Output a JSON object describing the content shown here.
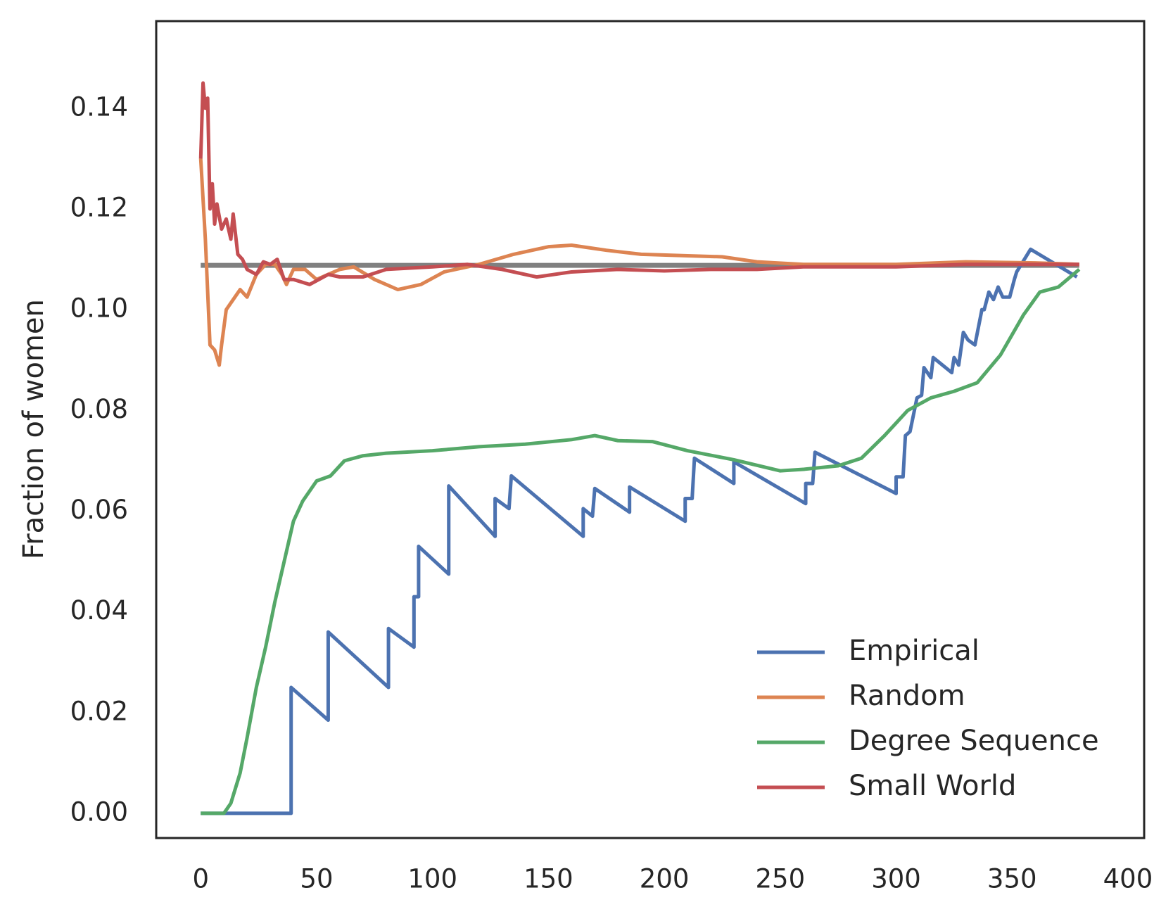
{
  "chart_data": {
    "type": "line",
    "ylabel": "Fraction of women",
    "xlim": [
      -19.2,
      407
    ],
    "ylim": [
      -0.0049,
      0.1573
    ],
    "xticks": [
      0,
      50,
      100,
      150,
      200,
      250,
      300,
      350,
      400
    ],
    "yticks": [
      {
        "value": 0,
        "label": "0.00"
      },
      0.02,
      0.04,
      0.06,
      0.08,
      {
        "value": 0.1,
        "label": "0.10"
      },
      0.12,
      0.14
    ],
    "grid": false,
    "legend": "lower right",
    "hline": {
      "value": 0.1088,
      "color": "#808080"
    },
    "series": [
      {
        "name": "Empirical",
        "color": "#4c72b0",
        "x": [
          0,
          39,
          39,
          55,
          55,
          81,
          81,
          92,
          92,
          94,
          94,
          107,
          107,
          127,
          127,
          133,
          134,
          165,
          165,
          169,
          170,
          185,
          185,
          209,
          209,
          212,
          213,
          230,
          230,
          261,
          261,
          264,
          265,
          300,
          300,
          303,
          304,
          306,
          309,
          311,
          312,
          315,
          316,
          324,
          325,
          327,
          329,
          331,
          334,
          337,
          338,
          340,
          342,
          344,
          346,
          349,
          351,
          352,
          358,
          378
        ],
        "values": [
          0,
          0,
          0.025,
          0.0185,
          0.036,
          0.025,
          0.0367,
          0.033,
          0.043,
          0.043,
          0.053,
          0.0475,
          0.065,
          0.055,
          0.0625,
          0.0605,
          0.067,
          0.055,
          0.0605,
          0.059,
          0.0645,
          0.0598,
          0.0648,
          0.058,
          0.0625,
          0.0625,
          0.0705,
          0.0655,
          0.0698,
          0.0615,
          0.0655,
          0.0655,
          0.0717,
          0.0635,
          0.0668,
          0.0668,
          0.075,
          0.0758,
          0.0825,
          0.083,
          0.0885,
          0.0865,
          0.0905,
          0.0875,
          0.0905,
          0.089,
          0.0955,
          0.094,
          0.093,
          0.1,
          0.1,
          0.1035,
          0.102,
          0.1045,
          0.1025,
          0.1025,
          0.106,
          0.1075,
          0.112,
          0.1065
        ]
      },
      {
        "name": "Random",
        "color": "#dd8452",
        "x": [
          0,
          2,
          4,
          6,
          8,
          9,
          11,
          14,
          17,
          20,
          24,
          28,
          32,
          35,
          37,
          40,
          45,
          50,
          60,
          66,
          75,
          85,
          95,
          105,
          120,
          135,
          150,
          160,
          175,
          190,
          210,
          225,
          240,
          260,
          280,
          300,
          330,
          360,
          379
        ],
        "values": [
          0.13,
          0.114,
          0.093,
          0.092,
          0.089,
          0.093,
          0.1,
          0.102,
          0.104,
          0.1025,
          0.107,
          0.109,
          0.109,
          0.107,
          0.105,
          0.108,
          0.108,
          0.106,
          0.108,
          0.1085,
          0.106,
          0.104,
          0.105,
          0.1075,
          0.109,
          0.111,
          0.1125,
          0.1128,
          0.1118,
          0.111,
          0.1107,
          0.1105,
          0.1095,
          0.109,
          0.109,
          0.109,
          0.1095,
          0.1093,
          0.109
        ]
      },
      {
        "name": "Degree Sequence",
        "color": "#55a868",
        "x": [
          0,
          10,
          13,
          17,
          20,
          24,
          28,
          32,
          36,
          40,
          44,
          50,
          56,
          62,
          70,
          80,
          100,
          120,
          140,
          160,
          170,
          180,
          195,
          210,
          230,
          250,
          260,
          275,
          285,
          295,
          305,
          315,
          325,
          335,
          345,
          355,
          362,
          370,
          379
        ],
        "values": [
          0,
          0,
          0.002,
          0.008,
          0.015,
          0.025,
          0.033,
          0.042,
          0.05,
          0.058,
          0.062,
          0.066,
          0.067,
          0.07,
          0.071,
          0.0715,
          0.072,
          0.0728,
          0.0733,
          0.0742,
          0.075,
          0.074,
          0.0738,
          0.072,
          0.0702,
          0.068,
          0.0683,
          0.069,
          0.0705,
          0.075,
          0.08,
          0.0825,
          0.0838,
          0.0855,
          0.091,
          0.099,
          0.1035,
          0.1045,
          0.108
        ]
      },
      {
        "name": "Small World",
        "color": "#c44e52",
        "x": [
          0,
          1,
          2,
          3,
          4,
          5,
          6,
          7,
          9,
          11,
          13,
          14,
          16,
          18,
          20,
          24,
          27,
          30,
          33,
          36,
          40,
          47,
          55,
          60,
          70,
          80,
          100,
          115,
          130,
          145,
          160,
          180,
          200,
          220,
          240,
          260,
          300,
          330,
          379
        ],
        "values": [
          0.13,
          0.145,
          0.14,
          0.142,
          0.12,
          0.125,
          0.117,
          0.121,
          0.116,
          0.118,
          0.114,
          0.119,
          0.111,
          0.11,
          0.108,
          0.107,
          0.1095,
          0.109,
          0.11,
          0.106,
          0.106,
          0.105,
          0.107,
          0.1065,
          0.1065,
          0.108,
          0.1085,
          0.109,
          0.108,
          0.1065,
          0.1075,
          0.108,
          0.1077,
          0.108,
          0.108,
          0.1085,
          0.1085,
          0.109,
          0.109
        ]
      }
    ]
  }
}
